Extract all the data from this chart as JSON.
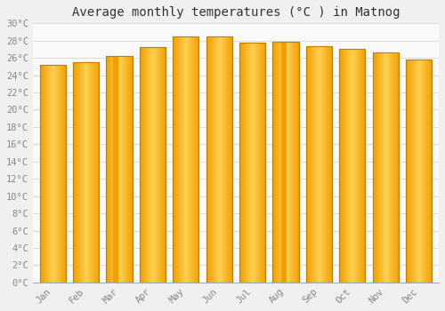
{
  "title": "Average monthly temperatures (°C ) in Matnog",
  "months": [
    "Jan",
    "Feb",
    "Mar",
    "Apr",
    "May",
    "Jun",
    "Jul",
    "Aug",
    "Sep",
    "Oct",
    "Nov",
    "Dec"
  ],
  "values": [
    25.2,
    25.5,
    26.2,
    27.3,
    28.5,
    28.5,
    27.8,
    27.9,
    27.4,
    27.0,
    26.6,
    25.8
  ],
  "ylim": [
    0,
    30
  ],
  "yticks": [
    0,
    2,
    4,
    6,
    8,
    10,
    12,
    14,
    16,
    18,
    20,
    22,
    24,
    26,
    28,
    30
  ],
  "bar_color_center": "#FFD050",
  "bar_color_edge": "#F0A000",
  "bar_outline_color": "#C08000",
  "background_color": "#F0F0F0",
  "plot_bg_color": "#FAFAFA",
  "grid_color": "#DDDDDD",
  "title_fontsize": 10,
  "tick_fontsize": 7.5,
  "tick_color": "#888888",
  "font_family": "monospace"
}
